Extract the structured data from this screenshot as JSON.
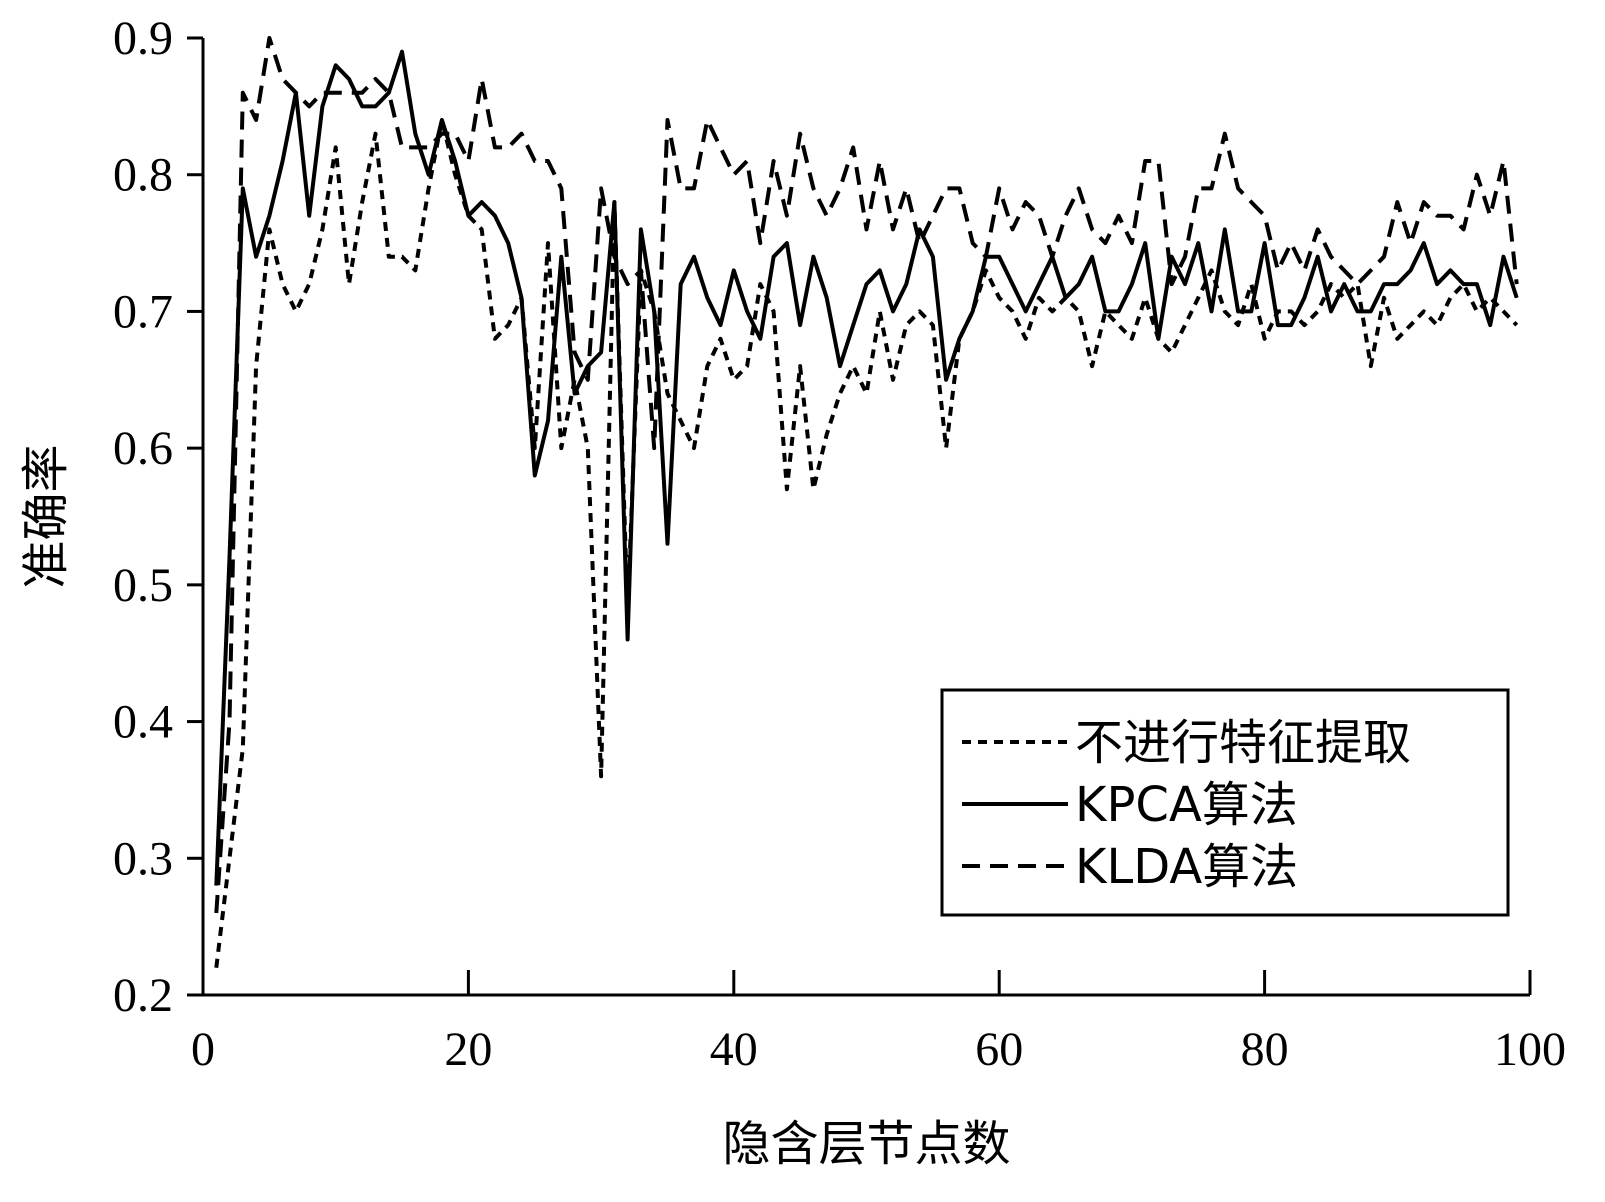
{
  "chart_data": {
    "type": "line",
    "title": "",
    "xlabel": "隐含层节点数",
    "ylabel": "准确率",
    "xlim": [
      0,
      100
    ],
    "ylim": [
      0.2,
      0.9
    ],
    "xticks": [
      0,
      20,
      40,
      60,
      80,
      100
    ],
    "yticks": [
      0.2,
      0.3,
      0.4,
      0.5,
      0.6,
      0.7,
      0.8,
      0.9
    ],
    "xtick_labels": [
      "0",
      "20",
      "40",
      "60",
      "80",
      "100"
    ],
    "ytick_labels": [
      "0.2",
      "0.3",
      "0.4",
      "0.5",
      "0.6",
      "0.7",
      "0.8",
      "0.9"
    ],
    "grid": false,
    "legend_position": "bottom-right",
    "x": [
      1,
      2,
      3,
      4,
      5,
      6,
      7,
      8,
      9,
      10,
      11,
      12,
      13,
      14,
      15,
      16,
      17,
      18,
      19,
      20,
      21,
      22,
      23,
      24,
      25,
      26,
      27,
      28,
      29,
      30,
      31,
      32,
      33,
      34,
      35,
      36,
      37,
      38,
      39,
      40,
      41,
      42,
      43,
      44,
      45,
      46,
      47,
      48,
      49,
      50,
      51,
      52,
      53,
      54,
      55,
      56,
      57,
      58,
      59,
      60,
      61,
      62,
      63,
      64,
      65,
      66,
      67,
      68,
      69,
      70,
      71,
      72,
      73,
      74,
      75,
      76,
      77,
      78,
      79,
      80,
      81,
      82,
      83,
      84,
      85,
      86,
      87,
      88,
      89,
      90,
      91,
      92,
      93,
      94,
      95,
      96,
      97,
      98,
      99
    ],
    "series": [
      {
        "name": "不进行特征提取",
        "dash": "9,7",
        "values": [
          0.22,
          0.3,
          0.38,
          0.66,
          0.76,
          0.72,
          0.7,
          0.72,
          0.76,
          0.82,
          0.72,
          0.78,
          0.83,
          0.74,
          0.74,
          0.73,
          0.79,
          0.84,
          0.8,
          0.77,
          0.76,
          0.68,
          0.69,
          0.71,
          0.6,
          0.75,
          0.6,
          0.65,
          0.6,
          0.36,
          0.78,
          0.48,
          0.73,
          0.7,
          0.64,
          0.62,
          0.6,
          0.66,
          0.68,
          0.65,
          0.66,
          0.72,
          0.7,
          0.57,
          0.66,
          0.57,
          0.61,
          0.64,
          0.66,
          0.64,
          0.7,
          0.65,
          0.69,
          0.7,
          0.69,
          0.6,
          0.68,
          0.7,
          0.73,
          0.71,
          0.7,
          0.68,
          0.71,
          0.7,
          0.71,
          0.7,
          0.66,
          0.7,
          0.69,
          0.68,
          0.71,
          0.68,
          0.67,
          0.69,
          0.71,
          0.73,
          0.7,
          0.69,
          0.72,
          0.68,
          0.7,
          0.7,
          0.69,
          0.7,
          0.72,
          0.71,
          0.72,
          0.66,
          0.71,
          0.68,
          0.69,
          0.7,
          0.69,
          0.71,
          0.72,
          0.7,
          0.71,
          0.7,
          0.69
        ]
      },
      {
        "name": "KPCA算法",
        "dash": "",
        "values": [
          0.28,
          0.52,
          0.79,
          0.74,
          0.77,
          0.81,
          0.86,
          0.77,
          0.85,
          0.88,
          0.87,
          0.85,
          0.85,
          0.86,
          0.89,
          0.83,
          0.8,
          0.84,
          0.81,
          0.77,
          0.78,
          0.77,
          0.75,
          0.71,
          0.58,
          0.62,
          0.74,
          0.64,
          0.66,
          0.67,
          0.78,
          0.46,
          0.76,
          0.7,
          0.53,
          0.72,
          0.74,
          0.71,
          0.69,
          0.73,
          0.7,
          0.68,
          0.74,
          0.75,
          0.69,
          0.74,
          0.71,
          0.66,
          0.69,
          0.72,
          0.73,
          0.7,
          0.72,
          0.76,
          0.74,
          0.65,
          0.68,
          0.7,
          0.74,
          0.74,
          0.72,
          0.7,
          0.72,
          0.74,
          0.71,
          0.72,
          0.74,
          0.7,
          0.7,
          0.72,
          0.75,
          0.68,
          0.74,
          0.72,
          0.75,
          0.7,
          0.76,
          0.7,
          0.7,
          0.75,
          0.69,
          0.69,
          0.71,
          0.74,
          0.7,
          0.72,
          0.7,
          0.7,
          0.72,
          0.72,
          0.73,
          0.75,
          0.72,
          0.73,
          0.72,
          0.72,
          0.69,
          0.74,
          0.71
        ]
      },
      {
        "name": "KLDA算法",
        "dash": "18,10",
        "values": [
          0.26,
          0.4,
          0.86,
          0.84,
          0.9,
          0.87,
          0.86,
          0.85,
          0.86,
          0.86,
          0.86,
          0.86,
          0.87,
          0.86,
          0.82,
          0.82,
          0.82,
          0.83,
          0.83,
          0.81,
          0.87,
          0.82,
          0.82,
          0.83,
          0.81,
          0.81,
          0.79,
          0.67,
          0.65,
          0.79,
          0.74,
          0.72,
          0.73,
          0.6,
          0.84,
          0.79,
          0.79,
          0.84,
          0.82,
          0.8,
          0.81,
          0.75,
          0.81,
          0.77,
          0.83,
          0.79,
          0.77,
          0.79,
          0.82,
          0.76,
          0.81,
          0.76,
          0.79,
          0.75,
          0.77,
          0.79,
          0.79,
          0.75,
          0.74,
          0.79,
          0.76,
          0.78,
          0.77,
          0.74,
          0.77,
          0.79,
          0.76,
          0.75,
          0.77,
          0.75,
          0.81,
          0.81,
          0.72,
          0.74,
          0.79,
          0.79,
          0.83,
          0.79,
          0.78,
          0.77,
          0.73,
          0.75,
          0.73,
          0.76,
          0.74,
          0.73,
          0.72,
          0.73,
          0.74,
          0.78,
          0.75,
          0.78,
          0.77,
          0.77,
          0.76,
          0.8,
          0.77,
          0.81,
          0.72
        ]
      }
    ]
  }
}
